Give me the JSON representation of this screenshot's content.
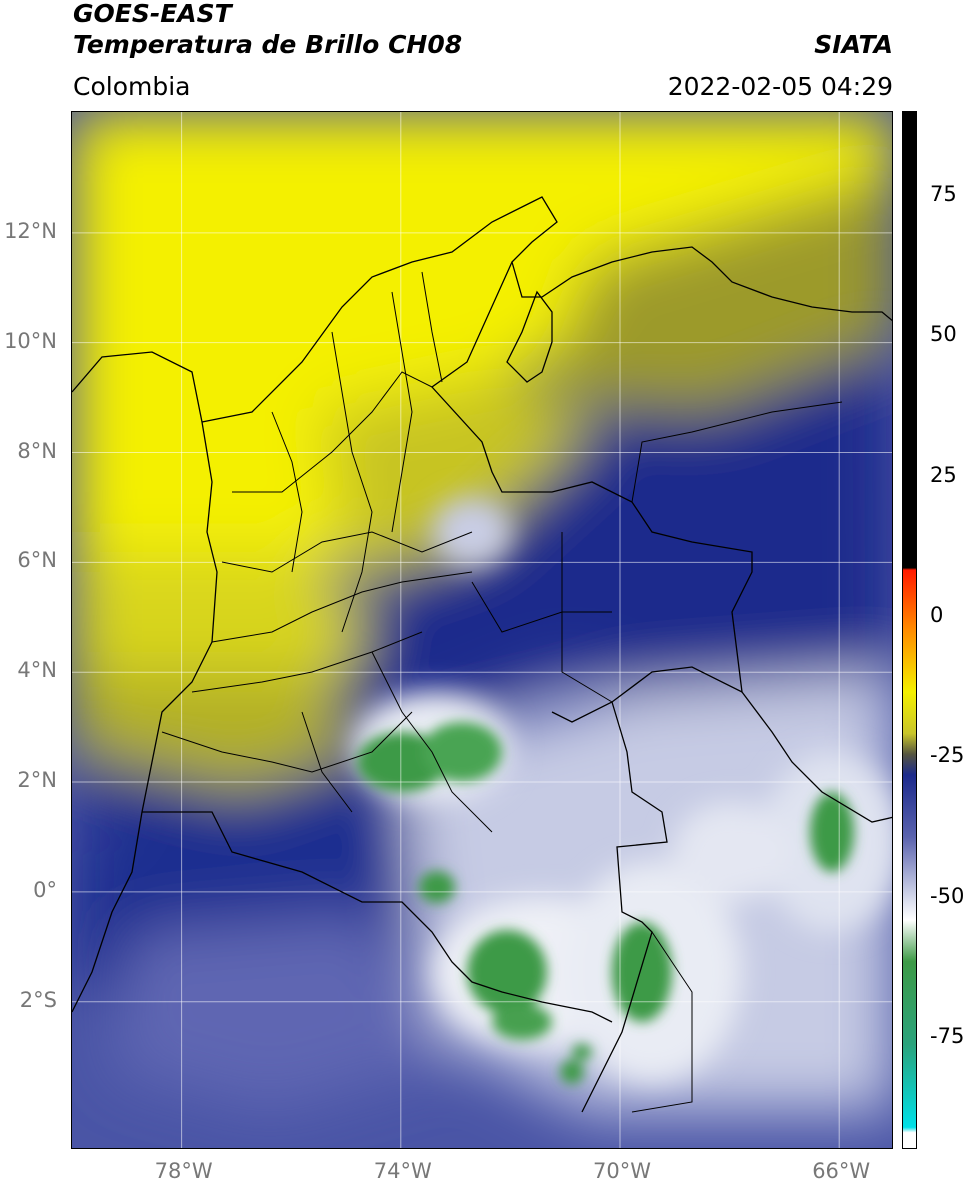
{
  "header": {
    "satellite": "GOES-EAST",
    "product": "Temperatura de Brillo CH08",
    "region": "Colombia",
    "agency": "SIATA",
    "timestamp": "2022-02-05 04:29"
  },
  "map": {
    "lon_range": [
      -80,
      -65
    ],
    "lat_range": [
      -4.7,
      14.2
    ],
    "lon_ticks": [
      {
        "value": -78,
        "label": "78°W"
      },
      {
        "value": -74,
        "label": "74°W"
      },
      {
        "value": -70,
        "label": "70°W"
      },
      {
        "value": -66,
        "label": "66°W"
      }
    ],
    "lat_ticks": [
      {
        "value": 12,
        "label": "12°N"
      },
      {
        "value": 10,
        "label": "10°N"
      },
      {
        "value": 8,
        "label": "8°N"
      },
      {
        "value": 6,
        "label": "6°N"
      },
      {
        "value": 4,
        "label": "4°N"
      },
      {
        "value": 2,
        "label": "2°N"
      },
      {
        "value": 0,
        "label": "0°"
      },
      {
        "value": -2,
        "label": "2°S"
      }
    ],
    "grid": true,
    "colors": {
      "dry_yellow": "#f4f000",
      "olive": "#9c9a2a",
      "navy": "#1c2a8c",
      "blue_gray": "#5b63ae",
      "light": "#d8dced",
      "green": "#3d9a46",
      "coast": "#000000"
    }
  },
  "colorbar": {
    "range": [
      -95,
      90
    ],
    "labels": [
      {
        "value": 75,
        "label": "75"
      },
      {
        "value": 50,
        "label": "50"
      },
      {
        "value": 25,
        "label": "25"
      },
      {
        "value": 0,
        "label": "0"
      },
      {
        "value": -25,
        "label": "-25"
      },
      {
        "value": -50,
        "label": "-50"
      },
      {
        "value": -75,
        "label": "-75"
      }
    ]
  }
}
